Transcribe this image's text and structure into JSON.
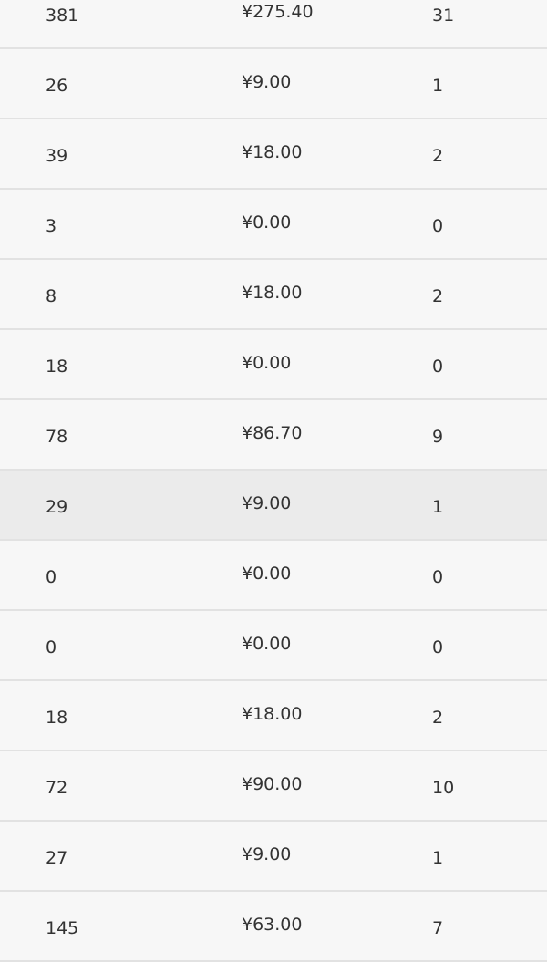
{
  "table": {
    "highlighted_row_index": 7,
    "rows": [
      {
        "count": "381",
        "amount": "¥275.40",
        "orders": "31"
      },
      {
        "count": "26",
        "amount": "¥9.00",
        "orders": "1"
      },
      {
        "count": "39",
        "amount": "¥18.00",
        "orders": "2"
      },
      {
        "count": "3",
        "amount": "¥0.00",
        "orders": "0"
      },
      {
        "count": "8",
        "amount": "¥18.00",
        "orders": "2"
      },
      {
        "count": "18",
        "amount": "¥0.00",
        "orders": "0"
      },
      {
        "count": "78",
        "amount": "¥86.70",
        "orders": "9"
      },
      {
        "count": "29",
        "amount": "¥9.00",
        "orders": "1"
      },
      {
        "count": "0",
        "amount": "¥0.00",
        "orders": "0"
      },
      {
        "count": "0",
        "amount": "¥0.00",
        "orders": "0"
      },
      {
        "count": "18",
        "amount": "¥18.00",
        "orders": "2"
      },
      {
        "count": "72",
        "amount": "¥90.00",
        "orders": "10"
      },
      {
        "count": "27",
        "amount": "¥9.00",
        "orders": "1"
      },
      {
        "count": "145",
        "amount": "¥63.00",
        "orders": "7"
      }
    ]
  },
  "colors": {
    "row_bg": "#f7f7f7",
    "row_highlight": "#ebebeb",
    "divider": "#e2e2e2",
    "text": "#333333"
  }
}
